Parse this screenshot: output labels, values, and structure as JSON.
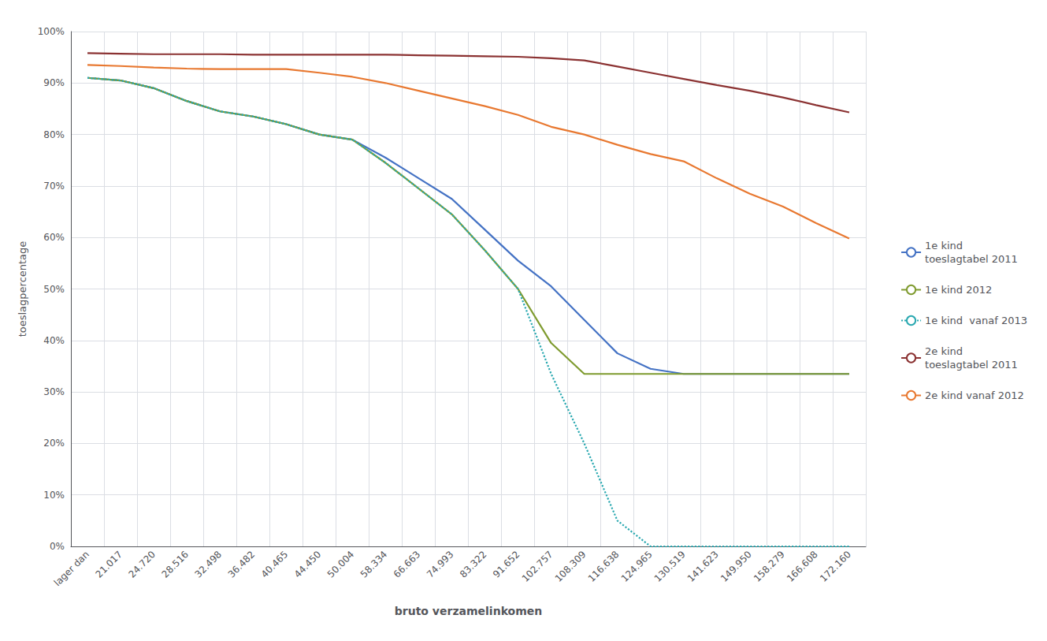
{
  "chart_data": {
    "type": "line",
    "xlabel": "bruto verzamelinkomen",
    "ylabel": "toeslagpercentage",
    "categories": [
      "lager dan",
      "21.017",
      "24.720",
      "28.516",
      "32.498",
      "36.482",
      "40.465",
      "44.450",
      "50.004",
      "58.334",
      "66.663",
      "74.993",
      "83.322",
      "91.652",
      "102.757",
      "108.309",
      "116.638",
      "124.965",
      "130.519",
      "141.623",
      "149.950",
      "158.279",
      "166.608",
      "172.160"
    ],
    "series": [
      {
        "name": "1e kind\ntoeslagtabel 2011",
        "color": "#4472C4",
        "line_style": "solid",
        "values": [
          0.91,
          0.905,
          0.89,
          0.865,
          0.845,
          0.835,
          0.82,
          0.8,
          0.79,
          0.755,
          0.715,
          0.675,
          0.615,
          0.555,
          0.505,
          0.44,
          0.375,
          0.345,
          0.335,
          0.335,
          0.335,
          0.335,
          0.335,
          0.335
        ]
      },
      {
        "name": "1e kind 2012",
        "color": "#7F9B2F",
        "line_style": "solid",
        "values": [
          0.91,
          0.905,
          0.89,
          0.865,
          0.845,
          0.835,
          0.82,
          0.8,
          0.79,
          0.745,
          0.695,
          0.645,
          0.575,
          0.5,
          0.395,
          0.335,
          0.335,
          0.335,
          0.335,
          0.335,
          0.335,
          0.335,
          0.335,
          0.335
        ]
      },
      {
        "name": "1e kind  vanaf 2013",
        "color": "#29A8B0",
        "line_style": "dotted",
        "values": [
          0.91,
          0.905,
          0.89,
          0.865,
          0.845,
          0.835,
          0.82,
          0.8,
          0.79,
          0.745,
          0.695,
          0.645,
          0.575,
          0.5,
          0.335,
          0.2,
          0.05,
          0.0,
          0.0,
          0.0,
          0.0,
          0.0,
          0.0,
          0.0
        ]
      },
      {
        "name": "2e kind\ntoeslagtabel 2011",
        "color": "#8B3232",
        "line_style": "solid",
        "values": [
          0.958,
          0.957,
          0.956,
          0.956,
          0.956,
          0.955,
          0.955,
          0.955,
          0.955,
          0.955,
          0.954,
          0.953,
          0.952,
          0.951,
          0.948,
          0.944,
          0.932,
          0.92,
          0.908,
          0.896,
          0.885,
          0.872,
          0.857,
          0.843
        ]
      },
      {
        "name": "2e kind vanaf 2012",
        "color": "#E87830",
        "line_style": "solid",
        "values": [
          0.935,
          0.933,
          0.93,
          0.928,
          0.927,
          0.927,
          0.927,
          0.92,
          0.912,
          0.9,
          0.885,
          0.87,
          0.855,
          0.838,
          0.815,
          0.8,
          0.78,
          0.762,
          0.748,
          0.715,
          0.685,
          0.66,
          0.628,
          0.598
        ]
      }
    ],
    "ylim": [
      0,
      1.0
    ],
    "yticks": [
      {
        "value": 0.0,
        "label": "0%"
      },
      {
        "value": 0.1,
        "label": "10%"
      },
      {
        "value": 0.2,
        "label": "20%"
      },
      {
        "value": 0.3,
        "label": "30%"
      },
      {
        "value": 0.4,
        "label": "40%"
      },
      {
        "value": 0.5,
        "label": "50%"
      },
      {
        "value": 0.6,
        "label": "60%"
      },
      {
        "value": 0.7,
        "label": "70%"
      },
      {
        "value": 0.8,
        "label": "80%"
      },
      {
        "value": 0.9,
        "label": "90%"
      },
      {
        "value": 1.0,
        "label": "100%"
      }
    ],
    "grid": true,
    "legend": "right"
  }
}
